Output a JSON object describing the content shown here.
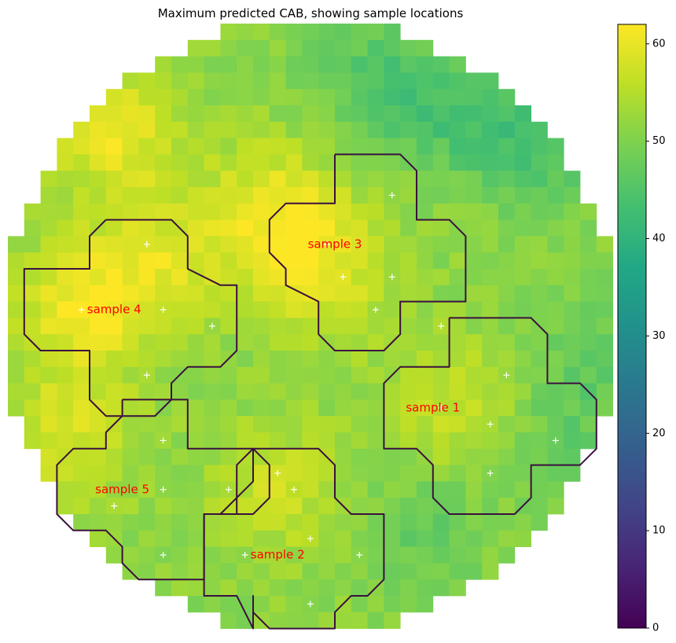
{
  "chart_data": {
    "type": "heatmap",
    "title": "Maximum predicted CAB, showing sample locations",
    "colormap": "viridis",
    "colorbar": {
      "min": 0,
      "max": 62,
      "ticks": [
        0,
        10,
        20,
        30,
        40,
        50,
        60
      ]
    },
    "grid": {
      "rows": 37,
      "cols": 37
    },
    "field_description_colors": {
      "high": "#f0e21a",
      "mid": "#b4d62c",
      "low": "#48c16e"
    },
    "value_field": {
      "base": 51,
      "hotspots": [
        {
          "row": 17,
          "col": 4,
          "value": 60
        },
        {
          "row": 11,
          "col": 16,
          "value": 60
        },
        {
          "row": 15,
          "col": 19,
          "value": 58
        },
        {
          "row": 25,
          "col": 3,
          "value": 58
        },
        {
          "row": 23,
          "col": 27,
          "value": 57
        },
        {
          "row": 28,
          "col": 16,
          "value": 57
        },
        {
          "row": 14,
          "col": 9,
          "value": 58
        },
        {
          "row": 6,
          "col": 6,
          "value": 60
        }
      ],
      "coldspots": [
        {
          "row": 3,
          "col": 22,
          "value": 45
        },
        {
          "row": 5,
          "col": 27,
          "value": 45
        },
        {
          "row": 7,
          "col": 32,
          "value": 44
        },
        {
          "row": 30,
          "col": 25,
          "value": 47
        },
        {
          "row": 25,
          "col": 33,
          "value": 47
        },
        {
          "row": 20,
          "col": 36,
          "value": 47
        }
      ]
    },
    "sample_points": [
      [
        23.5,
        10.5
      ],
      [
        8.5,
        13.5
      ],
      [
        23.5,
        15.5
      ],
      [
        26.5,
        18.5
      ],
      [
        9.5,
        17.5
      ],
      [
        12.5,
        18.5
      ],
      [
        20.5,
        15.5
      ],
      [
        22.5,
        17.5
      ],
      [
        8.5,
        21.5
      ],
      [
        30.5,
        21.5
      ],
      [
        26.5,
        23.5
      ],
      [
        29.5,
        24.5
      ],
      [
        33.5,
        25.5
      ],
      [
        29.5,
        27.5
      ],
      [
        9.5,
        25.5
      ],
      [
        9.5,
        28.5
      ],
      [
        13.5,
        28.5
      ],
      [
        17.5,
        28.5
      ],
      [
        6.5,
        29.5
      ],
      [
        18.5,
        31.5
      ],
      [
        21.5,
        32.5
      ],
      [
        9.5,
        32.5
      ],
      [
        14.5,
        32.5
      ],
      [
        18.5,
        35.5
      ],
      [
        4.5,
        17.5
      ],
      [
        19.5,
        13.5
      ],
      [
        16.5,
        27.5
      ]
    ],
    "regions": [
      {
        "label": "sample 1",
        "label_pos": [
          26,
          23.5
        ],
        "outline": [
          [
            27,
            18
          ],
          [
            32,
            18
          ],
          [
            33,
            19
          ],
          [
            33,
            22
          ],
          [
            34,
            22
          ],
          [
            35,
            22
          ],
          [
            36,
            23
          ],
          [
            36,
            26
          ],
          [
            35,
            27
          ],
          [
            34,
            27
          ],
          [
            33,
            27
          ],
          [
            32,
            27
          ],
          [
            32,
            28
          ],
          [
            32,
            29
          ],
          [
            31,
            30
          ],
          [
            30,
            30
          ],
          [
            27,
            30
          ],
          [
            27,
            30
          ],
          [
            26,
            29
          ],
          [
            26,
            28
          ],
          [
            26,
            27
          ],
          [
            25,
            26
          ],
          [
            24,
            26
          ],
          [
            23,
            26
          ],
          [
            23,
            22
          ],
          [
            24,
            21
          ],
          [
            27,
            21
          ],
          [
            27,
            18
          ]
        ]
      },
      {
        "label": "sample 2",
        "label_pos": [
          16.5,
          32.5
        ],
        "outline": [
          [
            15,
            26
          ],
          [
            19,
            26
          ],
          [
            20,
            27
          ],
          [
            20,
            28
          ],
          [
            20,
            29
          ],
          [
            21,
            30
          ],
          [
            23,
            30
          ],
          [
            23,
            31
          ],
          [
            23,
            33
          ],
          [
            23,
            34
          ],
          [
            22,
            35
          ],
          [
            21,
            35
          ],
          [
            20,
            36
          ],
          [
            20,
            37
          ],
          [
            16,
            37
          ],
          [
            15,
            36
          ],
          [
            15,
            35
          ],
          [
            15,
            37
          ],
          [
            14,
            35
          ],
          [
            12,
            35
          ],
          [
            12,
            32
          ],
          [
            12,
            31
          ],
          [
            12,
            30
          ],
          [
            13,
            30
          ],
          [
            14,
            30
          ],
          [
            14,
            28
          ],
          [
            14,
            27
          ],
          [
            15,
            26
          ],
          [
            16,
            26
          ],
          [
            15,
            26
          ],
          [
            16,
            27
          ],
          [
            16,
            29
          ],
          [
            15,
            30
          ],
          [
            12,
            30
          ]
        ]
      },
      {
        "label": "sample 3",
        "label_pos": [
          20,
          13.5
        ],
        "outline": [
          [
            20,
            8
          ],
          [
            24,
            8
          ],
          [
            25,
            9
          ],
          [
            25,
            12
          ],
          [
            26,
            12
          ],
          [
            27,
            12
          ],
          [
            28,
            13
          ],
          [
            28,
            17
          ],
          [
            27,
            17
          ],
          [
            24,
            17
          ],
          [
            24,
            19
          ],
          [
            23,
            20
          ],
          [
            20,
            20
          ],
          [
            19,
            19
          ],
          [
            19,
            17
          ],
          [
            17,
            16
          ],
          [
            17,
            15
          ],
          [
            16,
            14
          ],
          [
            16,
            12
          ],
          [
            17,
            11
          ],
          [
            20,
            11
          ],
          [
            20,
            9
          ],
          [
            20,
            8
          ]
        ]
      },
      {
        "label": "sample 4",
        "label_pos": [
          6.5,
          17.5
        ],
        "outline": [
          [
            6,
            12
          ],
          [
            10,
            12
          ],
          [
            11,
            13
          ],
          [
            11,
            15
          ],
          [
            13,
            16
          ],
          [
            14,
            16
          ],
          [
            14,
            18
          ],
          [
            14,
            20
          ],
          [
            13,
            21
          ],
          [
            11,
            21
          ],
          [
            10,
            22
          ],
          [
            10,
            23
          ],
          [
            9,
            24
          ],
          [
            6,
            24
          ],
          [
            5,
            23
          ],
          [
            5,
            20
          ],
          [
            3,
            20
          ],
          [
            2,
            20
          ],
          [
            1,
            19
          ],
          [
            1,
            16
          ],
          [
            1,
            15
          ],
          [
            2,
            15
          ],
          [
            5,
            15
          ],
          [
            5,
            13
          ],
          [
            6,
            12
          ]
        ]
      },
      {
        "label": "sample 5",
        "label_pos": [
          7,
          28.5
        ],
        "outline": [
          [
            7,
            23
          ],
          [
            11,
            23
          ],
          [
            11,
            26
          ],
          [
            14,
            26
          ],
          [
            15,
            26
          ],
          [
            15,
            27
          ],
          [
            15,
            28
          ],
          [
            14,
            29
          ],
          [
            13,
            30
          ],
          [
            12,
            30
          ],
          [
            12,
            32
          ],
          [
            12,
            34
          ],
          [
            11,
            34
          ],
          [
            8,
            34
          ],
          [
            7,
            33
          ],
          [
            7,
            32
          ],
          [
            6,
            31
          ],
          [
            4,
            31
          ],
          [
            3,
            30
          ],
          [
            3,
            29
          ],
          [
            3,
            27
          ],
          [
            4,
            26
          ],
          [
            6,
            26
          ],
          [
            6,
            25
          ],
          [
            7,
            24
          ],
          [
            7,
            23
          ]
        ]
      }
    ]
  }
}
